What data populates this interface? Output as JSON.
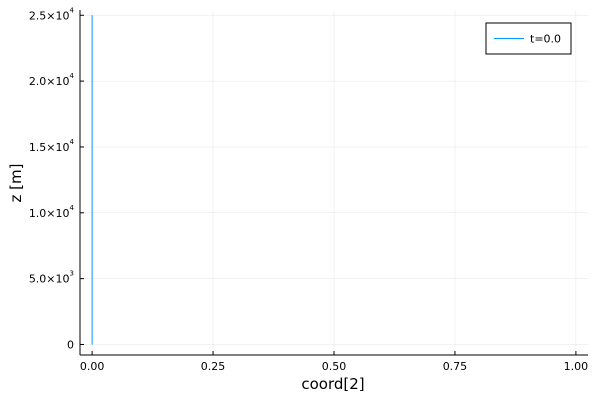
{
  "chart_data": {
    "type": "line",
    "xlabel": "coord[2]",
    "ylabel": "z [m]",
    "xlim": [
      -0.025,
      1.025
    ],
    "ylim": [
      -800,
      25400
    ],
    "grid": true,
    "legend_position": "top-right",
    "x_ticks": [
      {
        "value": 0.0,
        "label": "0.00"
      },
      {
        "value": 0.25,
        "label": "0.25"
      },
      {
        "value": 0.5,
        "label": "0.50"
      },
      {
        "value": 0.75,
        "label": "0.75"
      },
      {
        "value": 1.0,
        "label": "1.00"
      }
    ],
    "y_ticks": [
      {
        "value": 0,
        "mantissa": "0",
        "exponent": ""
      },
      {
        "value": 5000,
        "mantissa": "5.0×10",
        "exponent": "3"
      },
      {
        "value": 10000,
        "mantissa": "1.0×10",
        "exponent": "4"
      },
      {
        "value": 15000,
        "mantissa": "1.5×10",
        "exponent": "4"
      },
      {
        "value": 20000,
        "mantissa": "2.0×10",
        "exponent": "4"
      },
      {
        "value": 25000,
        "mantissa": "2.5×10",
        "exponent": "4"
      }
    ],
    "series": [
      {
        "name": "t=0.0",
        "color": "#009AF9",
        "points": [
          [
            0.0,
            0
          ],
          [
            0.0,
            25000
          ]
        ]
      }
    ]
  }
}
